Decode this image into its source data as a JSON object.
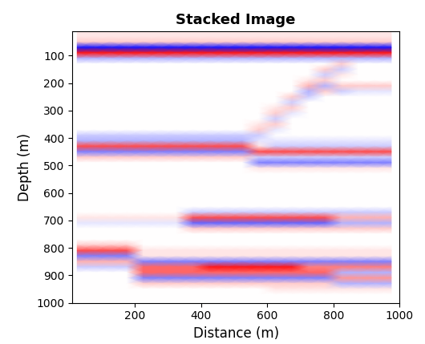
{
  "chart_data": {
    "type": "heatmap",
    "title": "Stacked Image",
    "x_label": "Distance (m)",
    "y_label": "Depth (m)",
    "xlim": [
      10,
      1000
    ],
    "ylim": [
      1000,
      10
    ],
    "xticks": [
      200,
      400,
      600,
      800,
      1000
    ],
    "yticks": [
      100,
      200,
      300,
      400,
      500,
      600,
      700,
      800,
      900,
      1000
    ],
    "zlim": [
      -10,
      10
    ],
    "x": [
      25,
      75,
      125,
      175,
      225,
      275,
      325,
      375,
      425,
      475,
      525,
      575,
      625,
      675,
      725,
      775,
      825,
      875,
      925,
      975
    ],
    "y": [
      10,
      30,
      50,
      70,
      90,
      110,
      130,
      150,
      170,
      190,
      210,
      230,
      250,
      270,
      290,
      310,
      330,
      350,
      370,
      390,
      410,
      430,
      450,
      470,
      490,
      510,
      530,
      550,
      570,
      590,
      610,
      630,
      650,
      670,
      690,
      710,
      730,
      750,
      770,
      790,
      810,
      830,
      850,
      870,
      890,
      910,
      930,
      950,
      970,
      990
    ],
    "z": [
      [
        1,
        1,
        1,
        1,
        1,
        1,
        1,
        1,
        1,
        1,
        1,
        1,
        1,
        1,
        1,
        1,
        1,
        1,
        1,
        1
      ],
      [
        1,
        1,
        1,
        1,
        1,
        1,
        1,
        1,
        1,
        1,
        1,
        1,
        1,
        1,
        1,
        1,
        1,
        1,
        1,
        1
      ],
      [
        2,
        2,
        2,
        2,
        2,
        2,
        2,
        2,
        2,
        2,
        2,
        2,
        2,
        2,
        2,
        2,
        2,
        2,
        2,
        2
      ],
      [
        -9,
        -9,
        -9,
        -9,
        -9,
        -9,
        -9,
        -9,
        -9,
        -9,
        -9,
        -9,
        -9,
        -9,
        -9,
        -9,
        -9,
        -9,
        -9,
        -9
      ],
      [
        9,
        9,
        9,
        9,
        9,
        9,
        9,
        9,
        9,
        9,
        9,
        9,
        9,
        9,
        9,
        9,
        9,
        9,
        9,
        9
      ],
      [
        -3,
        -3,
        -3,
        -3,
        -3,
        -3,
        -3,
        -3,
        -3,
        -3,
        -3,
        -3,
        -3,
        -3,
        -3,
        -3,
        -3,
        -3,
        -3,
        -3
      ],
      [
        0,
        0,
        0,
        0,
        0,
        0,
        0,
        0,
        0,
        0,
        0,
        0,
        0,
        0,
        0,
        0,
        2,
        0,
        0,
        0
      ],
      [
        0,
        0,
        0,
        0,
        0,
        0,
        0,
        0,
        0,
        0,
        0,
        0,
        0,
        0,
        0,
        2,
        -2,
        0,
        0,
        0
      ],
      [
        0,
        0,
        0,
        0,
        0,
        0,
        0,
        0,
        0,
        0,
        0,
        0,
        0,
        0,
        0,
        -2,
        1,
        0,
        0,
        0
      ],
      [
        0,
        0,
        0,
        0,
        0,
        0,
        0,
        0,
        0,
        0,
        0,
        0,
        0,
        0,
        1,
        2,
        0,
        0,
        0,
        0
      ],
      [
        0,
        0,
        0,
        0,
        0,
        0,
        0,
        0,
        0,
        0,
        0,
        0,
        0,
        0,
        3,
        -3,
        2,
        2,
        2,
        2
      ],
      [
        0,
        0,
        0,
        0,
        0,
        0,
        0,
        0,
        0,
        0,
        0,
        0,
        0,
        0,
        -3,
        2,
        -2,
        -1,
        -1,
        -1
      ],
      [
        0,
        0,
        0,
        0,
        0,
        0,
        0,
        0,
        0,
        0,
        0,
        0,
        0,
        2,
        -2,
        0,
        0,
        0,
        0,
        0
      ],
      [
        0,
        0,
        0,
        0,
        0,
        0,
        0,
        0,
        0,
        0,
        0,
        0,
        0,
        -2,
        0,
        0,
        0,
        0,
        0,
        0
      ],
      [
        0,
        0,
        0,
        0,
        0,
        0,
        0,
        0,
        0,
        0,
        0,
        0,
        1,
        2,
        0,
        0,
        0,
        0,
        0,
        0
      ],
      [
        0,
        0,
        0,
        0,
        0,
        0,
        0,
        0,
        0,
        0,
        0,
        0,
        2,
        -1,
        0,
        0,
        0,
        0,
        0,
        0
      ],
      [
        0,
        0,
        0,
        0,
        0,
        0,
        0,
        0,
        0,
        0,
        0,
        0,
        -2,
        0,
        0,
        0,
        0,
        0,
        0,
        0
      ],
      [
        0,
        0,
        0,
        0,
        0,
        0,
        0,
        0,
        0,
        0,
        0,
        1,
        2,
        0,
        0,
        0,
        0,
        0,
        0,
        0
      ],
      [
        0,
        0,
        0,
        0,
        0,
        0,
        0,
        0,
        0,
        0,
        0,
        2,
        -1,
        0,
        0,
        0,
        0,
        0,
        0,
        0
      ],
      [
        -2,
        -2,
        -2,
        -2,
        -2,
        -2,
        -2,
        -2,
        -2,
        -2,
        -2,
        -2,
        0,
        0,
        0,
        0,
        0,
        0,
        0,
        0
      ],
      [
        -3,
        -3,
        -3,
        -3,
        -3,
        -3,
        -3,
        -3,
        -3,
        -3,
        -3,
        -1,
        -1,
        -1,
        -1,
        -1,
        -1,
        -1,
        -1,
        -1
      ],
      [
        7,
        7,
        7,
        7,
        7,
        7,
        7,
        7,
        7,
        7,
        7,
        1,
        -2,
        -2,
        -2,
        -2,
        -2,
        -2,
        -2,
        -2
      ],
      [
        -5,
        -5,
        -5,
        -5,
        -5,
        -5,
        -5,
        -5,
        -5,
        -5,
        -5,
        7,
        7,
        7,
        7,
        7,
        7,
        7,
        7,
        7
      ],
      [
        2,
        2,
        2,
        2,
        2,
        2,
        2,
        2,
        2,
        2,
        2,
        -2,
        -2,
        -2,
        -2,
        -2,
        -2,
        -2,
        -2,
        -2
      ],
      [
        0,
        0,
        0,
        0,
        0,
        0,
        0,
        0,
        0,
        0,
        0,
        -5,
        -5,
        -5,
        -5,
        -5,
        -5,
        -5,
        -5,
        -5
      ],
      [
        0,
        0,
        0,
        0,
        0,
        0,
        0,
        0,
        0,
        0,
        0,
        1,
        1,
        1,
        1,
        1,
        1,
        1,
        1,
        1
      ],
      [
        0,
        0,
        0,
        0,
        0,
        0,
        0,
        0,
        0,
        0,
        0,
        0,
        0,
        0,
        0,
        0,
        0,
        0,
        0,
        0
      ],
      [
        0,
        0,
        0,
        0,
        0,
        0,
        0,
        0,
        0,
        0,
        0,
        0,
        0,
        0,
        0,
        0,
        0,
        0,
        0,
        0
      ],
      [
        0,
        0,
        0,
        0,
        0,
        0,
        0,
        0,
        0,
        0,
        0,
        0,
        0,
        0,
        0,
        0,
        0,
        0,
        0,
        0
      ],
      [
        0,
        0,
        0,
        0,
        0,
        0,
        0,
        0,
        0,
        0,
        0,
        0,
        0,
        0,
        0,
        0,
        0,
        0,
        0,
        0
      ],
      [
        0,
        0,
        0,
        0,
        0,
        0,
        0,
        0,
        0,
        0,
        0,
        0,
        0,
        0,
        0,
        0,
        0,
        0,
        0,
        0
      ],
      [
        0,
        0,
        0,
        0,
        0,
        0,
        0,
        0,
        0,
        0,
        0,
        0,
        0,
        0,
        0,
        0,
        0,
        0,
        0,
        0
      ],
      [
        0,
        0,
        0,
        0,
        0,
        0,
        0,
        0,
        0,
        0,
        0,
        0,
        0,
        0,
        0,
        0,
        0,
        0,
        0,
        0
      ],
      [
        0,
        0,
        0,
        0,
        0,
        0,
        0,
        -2,
        -2,
        -2,
        -2,
        -2,
        -2,
        -2,
        -2,
        -2,
        -2,
        -2,
        -2,
        -2
      ],
      [
        1,
        1,
        1,
        1,
        1,
        1,
        1,
        7,
        7,
        7,
        7,
        7,
        7,
        7,
        7,
        7,
        3,
        3,
        3,
        3
      ],
      [
        -1,
        -1,
        -1,
        -1,
        -1,
        -1,
        -1,
        -6,
        -6,
        -6,
        -6,
        -6,
        -6,
        -6,
        -6,
        -6,
        -3,
        -3,
        -3,
        -3
      ],
      [
        0,
        0,
        0,
        0,
        0,
        0,
        0,
        2,
        2,
        2,
        2,
        2,
        2,
        2,
        2,
        2,
        2,
        2,
        2,
        2
      ],
      [
        0,
        0,
        0,
        0,
        0,
        0,
        0,
        0,
        0,
        0,
        0,
        0,
        0,
        0,
        0,
        0,
        0,
        0,
        0,
        0
      ],
      [
        0,
        0,
        0,
        0,
        0,
        0,
        0,
        0,
        0,
        0,
        0,
        0,
        0,
        0,
        0,
        0,
        0,
        0,
        0,
        0
      ],
      [
        2,
        2,
        2,
        2,
        0,
        0,
        0,
        0,
        0,
        0,
        0,
        0,
        0,
        0,
        0,
        0,
        0,
        0,
        0,
        0
      ],
      [
        7,
        7,
        7,
        7,
        1,
        1,
        1,
        1,
        1,
        1,
        1,
        1,
        1,
        1,
        1,
        1,
        1,
        1,
        1,
        1
      ],
      [
        -5,
        -5,
        -5,
        -5,
        1,
        1,
        1,
        1,
        1,
        1,
        1,
        1,
        1,
        1,
        1,
        1,
        1,
        1,
        1,
        1
      ],
      [
        3,
        3,
        3,
        3,
        -5,
        -5,
        -5,
        -5,
        -5,
        -5,
        -5,
        -5,
        -5,
        -5,
        -5,
        -5,
        -5,
        -5,
        -5,
        -5
      ],
      [
        -2,
        -2,
        -2,
        -2,
        6,
        6,
        6,
        6,
        9,
        9,
        9,
        9,
        9,
        9,
        5,
        5,
        5,
        5,
        5,
        5
      ],
      [
        0,
        0,
        0,
        0,
        6,
        6,
        6,
        6,
        6,
        6,
        6,
        6,
        6,
        6,
        6,
        6,
        -3,
        -3,
        -3,
        -3
      ],
      [
        0,
        0,
        0,
        0,
        -5,
        -5,
        -5,
        -5,
        -5,
        -5,
        -5,
        -5,
        -5,
        -5,
        -5,
        -5,
        4,
        4,
        4,
        4
      ],
      [
        0,
        0,
        0,
        0,
        2,
        2,
        2,
        2,
        2,
        2,
        2,
        2,
        2,
        2,
        2,
        2,
        -3,
        -3,
        -3,
        -3
      ],
      [
        0,
        0,
        0,
        0,
        0,
        0,
        0,
        0,
        0,
        0,
        0,
        0,
        1,
        1,
        1,
        1,
        1,
        1,
        1,
        1
      ],
      [
        0,
        0,
        0,
        0,
        0,
        0,
        0,
        0,
        0,
        0,
        0,
        0,
        0,
        0,
        0,
        0,
        0,
        0,
        0,
        0
      ],
      [
        0,
        0,
        0,
        0,
        0,
        0,
        0,
        0,
        0,
        0,
        0,
        0,
        0,
        0,
        0,
        0,
        0,
        0,
        0,
        0
      ]
    ]
  }
}
